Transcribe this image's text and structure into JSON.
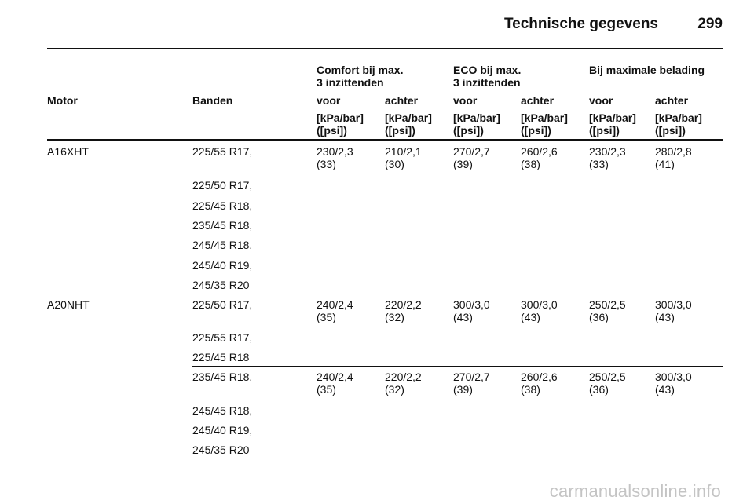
{
  "header": {
    "title": "Technische gegevens",
    "page_number": "299"
  },
  "table": {
    "group_headers": [
      "Comfort bij max.\n3 inzittenden",
      "ECO bij max.\n3 inzittenden",
      "Bij maximale belading"
    ],
    "col_headers": [
      "Motor",
      "Banden",
      "voor",
      "achter",
      "voor",
      "achter",
      "voor",
      "achter"
    ],
    "units": [
      "[kPa/bar]\n([psi])",
      "[kPa/bar]\n([psi])",
      "[kPa/bar]\n([psi])",
      "[kPa/bar]\n([psi])",
      "[kPa/bar]\n([psi])",
      "[kPa/bar]\n([psi])"
    ],
    "groups": [
      {
        "motor": "A16XHT",
        "tires": [
          "225/55 R17,",
          "225/50 R17,",
          "225/45 R18,",
          "235/45 R18,",
          "245/45 R18,",
          "245/40 R19,",
          "245/35 R20"
        ],
        "values": [
          "230/2,3\n(33)",
          "210/2,1\n(30)",
          "270/2,7\n(39)",
          "260/2,6\n(38)",
          "230/2,3\n(33)",
          "280/2,8\n(41)"
        ]
      },
      {
        "motor": "A20NHT",
        "tires": [
          "225/50 R17,",
          "225/55 R17,",
          "225/45 R18"
        ],
        "values": [
          "240/2,4\n(35)",
          "220/2,2\n(32)",
          "300/3,0\n(43)",
          "300/3,0\n(43)",
          "250/2,5\n(36)",
          "300/3,0\n(43)"
        ]
      },
      {
        "motor": "",
        "tires": [
          "235/45 R18,",
          "245/45 R18,",
          "245/40 R19,",
          "245/35 R20"
        ],
        "values": [
          "240/2,4\n(35)",
          "220/2,2\n(32)",
          "270/2,7\n(39)",
          "260/2,6\n(38)",
          "250/2,5\n(36)",
          "300/3,0\n(43)"
        ]
      }
    ]
  },
  "watermark": "carmanualsonline.info"
}
